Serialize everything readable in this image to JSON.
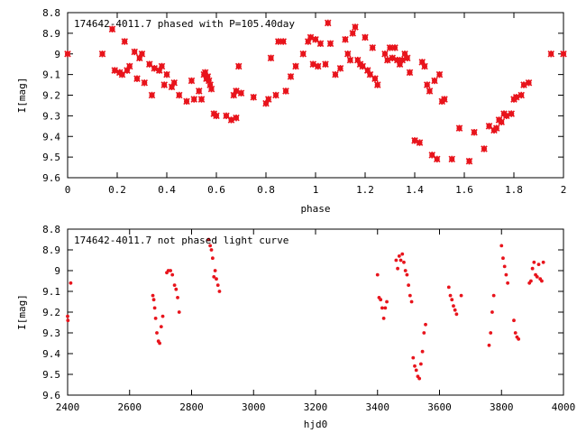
{
  "chart_data": [
    {
      "type": "scatter",
      "title": "174642-4011.7 phased with P=105.40day",
      "xlabel": "phase",
      "ylabel": "I[mag]",
      "xlim": [
        0,
        2
      ],
      "ylim": [
        9.6,
        8.8
      ],
      "y_inverted": true,
      "xticks": [
        "0",
        "0.2",
        "0.4",
        "0.6",
        "0.8",
        "1",
        "1.2",
        "1.4",
        "1.6",
        "1.8",
        "2"
      ],
      "yticks": [
        "8.8",
        "8.9",
        "9",
        "9.1",
        "9.2",
        "9.3",
        "9.4",
        "9.5",
        "9.6"
      ],
      "grid": false,
      "marker_color": "#e8141c",
      "points": [
        [
          0.0,
          9.0
        ],
        [
          0.14,
          9.0
        ],
        [
          0.18,
          8.88
        ],
        [
          0.19,
          9.08
        ],
        [
          0.21,
          9.09
        ],
        [
          0.22,
          9.1
        ],
        [
          0.23,
          8.94
        ],
        [
          0.24,
          9.08
        ],
        [
          0.25,
          9.06
        ],
        [
          0.27,
          8.99
        ],
        [
          0.28,
          9.12
        ],
        [
          0.29,
          9.02
        ],
        [
          0.3,
          9.0
        ],
        [
          0.31,
          9.14
        ],
        [
          0.33,
          9.05
        ],
        [
          0.34,
          9.2
        ],
        [
          0.35,
          9.07
        ],
        [
          0.37,
          9.08
        ],
        [
          0.38,
          9.06
        ],
        [
          0.39,
          9.15
        ],
        [
          0.4,
          9.1
        ],
        [
          0.42,
          9.16
        ],
        [
          0.43,
          9.14
        ],
        [
          0.45,
          9.2
        ],
        [
          0.48,
          9.23
        ],
        [
          0.5,
          9.13
        ],
        [
          0.51,
          9.22
        ],
        [
          0.53,
          9.18
        ],
        [
          0.54,
          9.22
        ],
        [
          0.55,
          9.1
        ],
        [
          0.555,
          9.09
        ],
        [
          0.56,
          9.12
        ],
        [
          0.565,
          9.11
        ],
        [
          0.57,
          9.13
        ],
        [
          0.575,
          9.15
        ],
        [
          0.58,
          9.17
        ],
        [
          0.59,
          9.29
        ],
        [
          0.6,
          9.3
        ],
        [
          0.64,
          9.3
        ],
        [
          0.66,
          9.32
        ],
        [
          0.67,
          9.2
        ],
        [
          0.68,
          9.31
        ],
        [
          0.68,
          9.18
        ],
        [
          0.69,
          9.06
        ],
        [
          0.7,
          9.19
        ],
        [
          0.75,
          9.21
        ],
        [
          0.8,
          9.24
        ],
        [
          0.81,
          9.22
        ],
        [
          0.82,
          9.02
        ],
        [
          0.84,
          9.2
        ],
        [
          0.85,
          8.94
        ],
        [
          0.87,
          8.94
        ],
        [
          0.88,
          9.18
        ],
        [
          0.9,
          9.11
        ],
        [
          0.92,
          9.06
        ],
        [
          0.95,
          9.0
        ],
        [
          0.97,
          8.94
        ],
        [
          0.98,
          8.92
        ],
        [
          0.99,
          9.05
        ],
        [
          1.0,
          8.93
        ],
        [
          1.01,
          9.06
        ],
        [
          1.02,
          8.95
        ],
        [
          1.04,
          9.05
        ],
        [
          1.05,
          8.85
        ],
        [
          1.06,
          8.95
        ],
        [
          1.08,
          9.1
        ],
        [
          1.1,
          9.07
        ],
        [
          1.12,
          8.93
        ],
        [
          1.13,
          9.0
        ],
        [
          1.14,
          9.03
        ],
        [
          1.15,
          8.9
        ],
        [
          1.16,
          8.87
        ],
        [
          1.17,
          9.03
        ],
        [
          1.18,
          9.05
        ],
        [
          1.19,
          9.06
        ],
        [
          1.2,
          8.92
        ],
        [
          1.21,
          9.08
        ],
        [
          1.22,
          9.1
        ],
        [
          1.23,
          8.97
        ],
        [
          1.24,
          9.12
        ],
        [
          1.25,
          9.15
        ],
        [
          1.28,
          9.0
        ],
        [
          1.29,
          9.03
        ],
        [
          1.3,
          8.97
        ],
        [
          1.31,
          9.02
        ],
        [
          1.32,
          8.97
        ],
        [
          1.33,
          9.03
        ],
        [
          1.34,
          9.05
        ],
        [
          1.35,
          9.03
        ],
        [
          1.36,
          9.0
        ],
        [
          1.37,
          9.02
        ],
        [
          1.38,
          9.09
        ],
        [
          1.4,
          9.42
        ],
        [
          1.42,
          9.43
        ],
        [
          1.43,
          9.04
        ],
        [
          1.44,
          9.06
        ],
        [
          1.45,
          9.15
        ],
        [
          1.46,
          9.18
        ],
        [
          1.47,
          9.49
        ],
        [
          1.48,
          9.13
        ],
        [
          1.49,
          9.51
        ],
        [
          1.5,
          9.1
        ],
        [
          1.51,
          9.23
        ],
        [
          1.52,
          9.22
        ],
        [
          1.55,
          9.51
        ],
        [
          1.58,
          9.36
        ],
        [
          1.62,
          9.52
        ],
        [
          1.64,
          9.38
        ],
        [
          1.68,
          9.46
        ],
        [
          1.7,
          9.35
        ],
        [
          1.72,
          9.37
        ],
        [
          1.73,
          9.36
        ],
        [
          1.74,
          9.32
        ],
        [
          1.75,
          9.33
        ],
        [
          1.76,
          9.29
        ],
        [
          1.77,
          9.3
        ],
        [
          1.79,
          9.29
        ],
        [
          1.8,
          9.22
        ],
        [
          1.81,
          9.21
        ],
        [
          1.83,
          9.2
        ],
        [
          1.84,
          9.15
        ],
        [
          1.86,
          9.14
        ],
        [
          1.95,
          9.0
        ],
        [
          2.0,
          9.0
        ]
      ]
    },
    {
      "type": "scatter",
      "title": "174642-4011.7 not phased light curve",
      "xlabel": "hjd0",
      "ylabel": "I[mag]",
      "xlim": [
        2400,
        4000
      ],
      "ylim": [
        9.6,
        8.8
      ],
      "y_inverted": true,
      "xticks": [
        "2400",
        "2600",
        "2800",
        "3000",
        "3200",
        "3400",
        "3600",
        "3800",
        "4000"
      ],
      "yticks": [
        "8.8",
        "8.9",
        "9",
        "9.1",
        "9.2",
        "9.3",
        "9.4",
        "9.5",
        "9.6"
      ],
      "grid": false,
      "marker_color": "#e8141c",
      "points": [
        [
          2400,
          9.22
        ],
        [
          2401,
          9.24
        ],
        [
          2410,
          9.06
        ],
        [
          2675,
          9.12
        ],
        [
          2678,
          9.14
        ],
        [
          2681,
          9.18
        ],
        [
          2684,
          9.23
        ],
        [
          2688,
          9.3
        ],
        [
          2693,
          9.34
        ],
        [
          2697,
          9.35
        ],
        [
          2702,
          9.27
        ],
        [
          2707,
          9.22
        ],
        [
          2720,
          9.01
        ],
        [
          2725,
          9.0
        ],
        [
          2732,
          9.0
        ],
        [
          2738,
          9.02
        ],
        [
          2745,
          9.07
        ],
        [
          2750,
          9.09
        ],
        [
          2755,
          9.13
        ],
        [
          2760,
          9.2
        ],
        [
          2855,
          8.85
        ],
        [
          2860,
          8.88
        ],
        [
          2864,
          8.9
        ],
        [
          2868,
          8.94
        ],
        [
          2872,
          9.03
        ],
        [
          2876,
          9.0
        ],
        [
          2880,
          9.04
        ],
        [
          2885,
          9.07
        ],
        [
          2890,
          9.1
        ],
        [
          3400,
          9.02
        ],
        [
          3405,
          9.13
        ],
        [
          3410,
          9.14
        ],
        [
          3415,
          9.18
        ],
        [
          3420,
          9.23
        ],
        [
          3425,
          9.18
        ],
        [
          3430,
          9.15
        ],
        [
          3460,
          8.95
        ],
        [
          3465,
          8.99
        ],
        [
          3470,
          8.93
        ],
        [
          3475,
          8.95
        ],
        [
          3480,
          8.92
        ],
        [
          3485,
          8.96
        ],
        [
          3490,
          9.0
        ],
        [
          3495,
          9.02
        ],
        [
          3500,
          9.07
        ],
        [
          3505,
          9.12
        ],
        [
          3510,
          9.15
        ],
        [
          3515,
          9.42
        ],
        [
          3520,
          9.46
        ],
        [
          3525,
          9.48
        ],
        [
          3530,
          9.51
        ],
        [
          3535,
          9.52
        ],
        [
          3540,
          9.45
        ],
        [
          3545,
          9.39
        ],
        [
          3550,
          9.3
        ],
        [
          3555,
          9.26
        ],
        [
          3630,
          9.08
        ],
        [
          3635,
          9.12
        ],
        [
          3640,
          9.14
        ],
        [
          3645,
          9.17
        ],
        [
          3650,
          9.19
        ],
        [
          3655,
          9.21
        ],
        [
          3670,
          9.12
        ],
        [
          3760,
          9.36
        ],
        [
          3765,
          9.3
        ],
        [
          3770,
          9.2
        ],
        [
          3775,
          9.12
        ],
        [
          3800,
          8.88
        ],
        [
          3805,
          8.94
        ],
        [
          3810,
          8.98
        ],
        [
          3815,
          9.02
        ],
        [
          3820,
          9.06
        ],
        [
          3840,
          9.24
        ],
        [
          3845,
          9.3
        ],
        [
          3850,
          9.32
        ],
        [
          3855,
          9.33
        ],
        [
          3890,
          9.06
        ],
        [
          3895,
          9.05
        ],
        [
          3900,
          8.99
        ],
        [
          3905,
          8.96
        ],
        [
          3910,
          9.02
        ],
        [
          3915,
          9.03
        ],
        [
          3920,
          8.97
        ],
        [
          3925,
          9.04
        ],
        [
          3930,
          9.05
        ],
        [
          3935,
          8.96
        ]
      ]
    }
  ]
}
